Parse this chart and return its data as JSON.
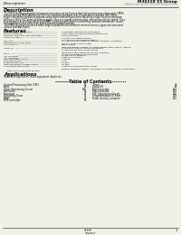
{
  "bg_color": "#f0efe8",
  "header_left": "Description",
  "header_right_line1": "M30218M6-AXXXFP",
  "header_right_line2": "M30218 15 Group",
  "header_right_line3": "SINGLE-CHIP 16-BIT CMOS MICROCOMPUTER",
  "description_title": "Description",
  "description_body": [
    "The M30218 group of single-chip microcomputers are built using the high-performance silicon gate CMOS",
    "process using a M16CAB (Series CPU) core and are packaged in a 100-pin plastic molded QFP. These",
    "single-chip microcomputers operate using sophisticated instructions featuring a high level of instruction",
    "efficiency. With 512 bytes of address space, they are capable of executing instructions at high speed. They",
    "also feature a built-in oscillator and DRAM, making them ideal for controlling musical instruments, house-",
    "hold appliances and other high-speed processing applications.",
    "The M30218 group includes a wide range of products with different internal memory types and sizes and",
    "various package types."
  ],
  "features_title": "Features",
  "features": [
    [
      "Basic machine instructions",
      "Compatible with the M16CAB series"
    ],
    [
      "Memory capacity",
      "256B / 8kB (has figure memory expansion)"
    ],
    [
      "Shortest instruction execution time",
      "100ns (0.0MHz)"
    ],
    [
      "Supply voltage",
      "4.0V to 5.5V (8MHz 16MHz)"
    ],
    [
      "",
      "2.7V to 5.5V (4MHz 8MHz/option)"
    ],
    [
      "Interrupts",
      "19 internal and 4 external interrupt sources, 4 software"
    ],
    [
      "Multifunction 16-bit timer",
      "Timer is 8-bit, 3 max (8-bit)"
    ],
    [
      "FLB controller",
      "total 32 pins"
    ],
    [
      "",
      "High-breakdown voltage I/O (Nmos bigger-drain output - 80pins)"
    ],
    [
      "Serial I/O",
      "2 channels UART or clock synchronous"
    ],
    [
      "",
      "1 channels for clock synchronous"
    ],
    [
      "",
      "(max 256 bytes automatic transfer function)"
    ],
    [
      "DMAC",
      "2 channels/triggers, 13 resources"
    ],
    [
      "A/D converter",
      "10-bit 8 or 16 channels"
    ],
    [
      "D/A converter",
      "8 bits x 3 channels"
    ],
    [
      "CRC calculation circuit",
      "1 circuit"
    ],
    [
      "Watchdog timer",
      "1 pin"
    ],
    [
      "Programmable I/O",
      "48 pins"
    ],
    [
      "High-breakdown voltage output",
      "15 pins"
    ],
    [
      "Clock generating circuit",
      "2 built-in clock generation circuit"
    ],
    [
      "",
      "(built-in feedback resistor, and external resistor or quartz oscillator)"
    ]
  ],
  "note": "Note: Only mask ROM version.",
  "applications_title": "Applications",
  "applications_text": "Household appliances, office equipment, Audio etc.",
  "toc_title": "Table of Contents",
  "toc_left": [
    [
      "Central Processing Unit (CPU)",
      "13"
    ],
    [
      "Reset",
      "74"
    ],
    [
      "Clock Generating Circuit",
      "196"
    ],
    [
      "Protection",
      "29"
    ],
    [
      "Interrupts",
      "27"
    ],
    [
      "Watchdog Timer",
      "45"
    ],
    [
      "DMAC",
      "47"
    ],
    [
      "FLB controller",
      "53"
    ]
  ],
  "toc_right": [
    [
      "Timer",
      "79"
    ],
    [
      "Serial I/O",
      "87"
    ],
    [
      "A/D Converter",
      "114"
    ],
    [
      "D/A Converter",
      "154"
    ],
    [
      "CRC Calculation Circuit",
      "136"
    ],
    [
      "Programmable I/O Ports",
      "438"
    ],
    [
      "Flash memory variants",
      "192"
    ]
  ],
  "page_number": "1"
}
